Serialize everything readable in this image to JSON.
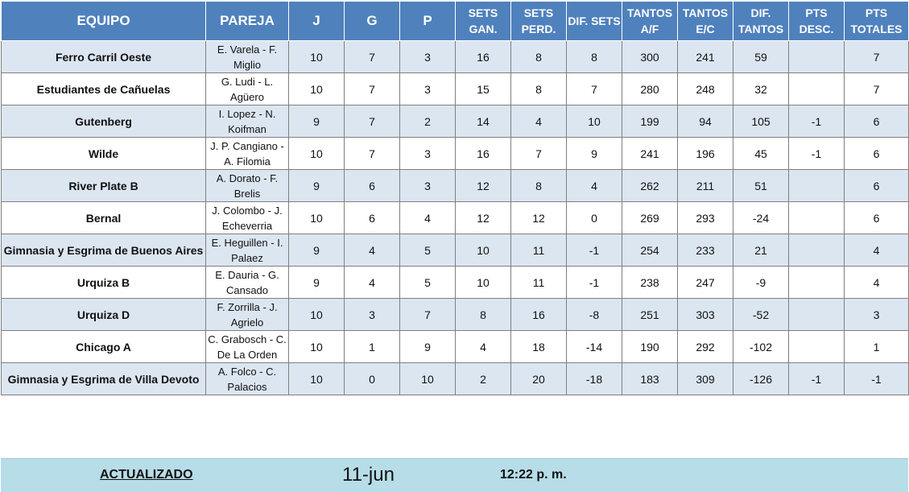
{
  "header": {
    "equipo": "EQUIPO",
    "pareja": "PAREJA",
    "j": "J",
    "g": "G",
    "p": "P",
    "sets_gan": [
      "SETS",
      "GAN."
    ],
    "sets_perd": [
      "SETS",
      "PERD."
    ],
    "dif_sets": "DIF. SETS",
    "tantos_af": [
      "TANTOS",
      "A/F"
    ],
    "tantos_ec": [
      "TANTOS",
      "E/C"
    ],
    "dif_tantos": [
      "DIF.",
      "TANTOS"
    ],
    "pts_desc": [
      "PTS",
      "DESC."
    ],
    "pts_totales": [
      "PTS",
      "TOTALES"
    ]
  },
  "rows": [
    {
      "equipo": "Ferro Carril Oeste",
      "pareja": [
        "E. Varela - F.",
        "Miglio"
      ],
      "j": "10",
      "g": "7",
      "p": "3",
      "sets_gan": "16",
      "sets_perd": "8",
      "dif_sets": "8",
      "tantos_af": "300",
      "tantos_ec": "241",
      "dif_tantos": "59",
      "pts_desc": "",
      "pts_totales": "7"
    },
    {
      "equipo": "Estudiantes de Cañuelas",
      "pareja": [
        "G. Ludi - L.",
        "Agüero"
      ],
      "j": "10",
      "g": "7",
      "p": "3",
      "sets_gan": "15",
      "sets_perd": "8",
      "dif_sets": "7",
      "tantos_af": "280",
      "tantos_ec": "248",
      "dif_tantos": "32",
      "pts_desc": "",
      "pts_totales": "7"
    },
    {
      "equipo": "Gutenberg",
      "pareja": [
        "I. Lopez - N.",
        "Koifman"
      ],
      "j": "9",
      "g": "7",
      "p": "2",
      "sets_gan": "14",
      "sets_perd": "4",
      "dif_sets": "10",
      "tantos_af": "199",
      "tantos_ec": "94",
      "dif_tantos": "105",
      "pts_desc": "-1",
      "pts_totales": "6"
    },
    {
      "equipo": "Wilde",
      "pareja": [
        "J. P. Cangiano -",
        "A. Filomia"
      ],
      "j": "10",
      "g": "7",
      "p": "3",
      "sets_gan": "16",
      "sets_perd": "7",
      "dif_sets": "9",
      "tantos_af": "241",
      "tantos_ec": "196",
      "dif_tantos": "45",
      "pts_desc": "-1",
      "pts_totales": "6"
    },
    {
      "equipo": "River Plate B",
      "pareja": [
        "A. Dorato - F.",
        "Brelis"
      ],
      "j": "9",
      "g": "6",
      "p": "3",
      "sets_gan": "12",
      "sets_perd": "8",
      "dif_sets": "4",
      "tantos_af": "262",
      "tantos_ec": "211",
      "dif_tantos": "51",
      "pts_desc": "",
      "pts_totales": "6"
    },
    {
      "equipo": "Bernal",
      "pareja": [
        "J. Colombo - J.",
        "Echeverria"
      ],
      "j": "10",
      "g": "6",
      "p": "4",
      "sets_gan": "12",
      "sets_perd": "12",
      "dif_sets": "0",
      "tantos_af": "269",
      "tantos_ec": "293",
      "dif_tantos": "-24",
      "pts_desc": "",
      "pts_totales": "6"
    },
    {
      "equipo": "Gimnasia y Esgrima de Buenos Aires",
      "pareja": [
        "E. Heguillen - I.",
        "Palaez"
      ],
      "j": "9",
      "g": "4",
      "p": "5",
      "sets_gan": "10",
      "sets_perd": "11",
      "dif_sets": "-1",
      "tantos_af": "254",
      "tantos_ec": "233",
      "dif_tantos": "21",
      "pts_desc": "",
      "pts_totales": "4"
    },
    {
      "equipo": "Urquiza B",
      "pareja": [
        "E. Dauria - G.",
        "Cansado"
      ],
      "j": "9",
      "g": "4",
      "p": "5",
      "sets_gan": "10",
      "sets_perd": "11",
      "dif_sets": "-1",
      "tantos_af": "238",
      "tantos_ec": "247",
      "dif_tantos": "-9",
      "pts_desc": "",
      "pts_totales": "4"
    },
    {
      "equipo": "Urquiza D",
      "pareja": [
        "F. Zorrilla - J.",
        "Agrielo"
      ],
      "j": "10",
      "g": "3",
      "p": "7",
      "sets_gan": "8",
      "sets_perd": "16",
      "dif_sets": "-8",
      "tantos_af": "251",
      "tantos_ec": "303",
      "dif_tantos": "-52",
      "pts_desc": "",
      "pts_totales": "3"
    },
    {
      "equipo": "Chicago A",
      "pareja": [
        "C. Grabosch - C.",
        "De La Orden"
      ],
      "j": "10",
      "g": "1",
      "p": "9",
      "sets_gan": "4",
      "sets_perd": "18",
      "dif_sets": "-14",
      "tantos_af": "190",
      "tantos_ec": "292",
      "dif_tantos": "-102",
      "pts_desc": "",
      "pts_totales": "1"
    },
    {
      "equipo": "Gimnasia y Esgrima de Villa Devoto",
      "pareja": [
        "A. Folco - C.",
        "Palacios"
      ],
      "j": "10",
      "g": "0",
      "p": "10",
      "sets_gan": "2",
      "sets_perd": "20",
      "dif_sets": "-18",
      "tantos_af": "183",
      "tantos_ec": "309",
      "dif_tantos": "-126",
      "pts_desc": "-1",
      "pts_totales": "-1"
    }
  ],
  "footer": {
    "label": "ACTUALIZADO",
    "date": "11-jun",
    "time": "12:22 p. m."
  }
}
